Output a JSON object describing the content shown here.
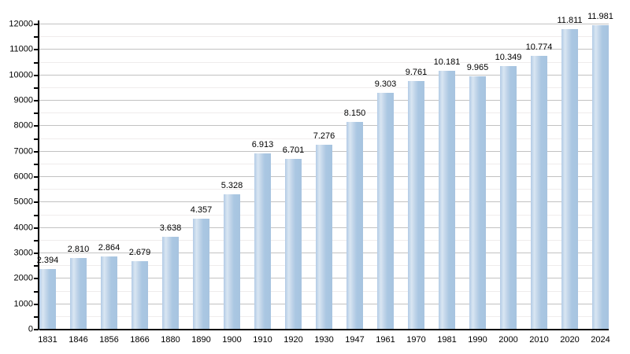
{
  "chart_data": {
    "type": "bar",
    "title": "",
    "xlabel": "",
    "ylabel": "",
    "categories": [
      "1831",
      "1846",
      "1856",
      "1866",
      "1880",
      "1890",
      "1900",
      "1910",
      "1920",
      "1930",
      "1947",
      "1961",
      "1970",
      "1981",
      "1990",
      "2000",
      "2010",
      "2020",
      "2024"
    ],
    "values": [
      2394,
      2810,
      2864,
      2679,
      3638,
      4357,
      5328,
      6913,
      6701,
      7276,
      8150,
      9303,
      9761,
      10181,
      9965,
      10349,
      10774,
      11811,
      11981
    ],
    "value_labels": [
      "2.394",
      "2.810",
      "2.864",
      "2.679",
      "3.638",
      "4.357",
      "5.328",
      "6.913",
      "6.701",
      "7.276",
      "8.150",
      "9.303",
      "9.761",
      "10.181",
      "9.965",
      "10.349",
      "10.774",
      "11.811",
      "11.981"
    ],
    "ylim": [
      0,
      12000
    ],
    "yticks": [
      0,
      1000,
      2000,
      3000,
      4000,
      5000,
      6000,
      7000,
      8000,
      9000,
      10000,
      11000,
      12000
    ],
    "ytick_labels": [
      "0",
      "1000",
      "2000",
      "3000",
      "4000",
      "5000",
      "6000",
      "7000",
      "8000",
      "9000",
      "10000",
      "11000",
      "12000"
    ],
    "ytick_minor_interval": 500,
    "grid": true,
    "legend": false,
    "legend_position": "none",
    "colors": {
      "bar_fill": "#aac7e2",
      "bar_highlight": "#d9e6f2",
      "grid_major": "#c2c2c2",
      "grid_minor": "#efecec",
      "axis": "#000000",
      "text": "#000000",
      "background": "#ffffff"
    }
  }
}
